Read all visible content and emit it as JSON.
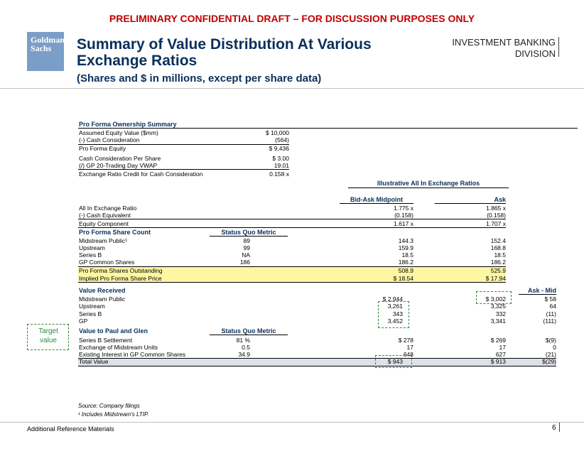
{
  "banner": "PRELIMINARY CONFIDENTIAL DRAFT – FOR DISCUSSION PURPOSES ONLY",
  "logo": {
    "line1": "Goldman",
    "line2": "Sachs"
  },
  "title": {
    "line1": "Summary of Value Distribution At Various",
    "line2": "Exchange Ratios",
    "subtitle": "(Shares and $ in millions, except per share data)"
  },
  "division": {
    "line1": "INVESTMENT BANKING",
    "line2": "DIVISION"
  },
  "ownership": {
    "header": "Pro Forma Ownership Summary",
    "rows": [
      {
        "label": "Assumed Equity Value ($mm)",
        "value": "$ 10,000"
      },
      {
        "label": "(-) Cash Consideration",
        "value": "(564)"
      },
      {
        "label": "Pro Forma Equity",
        "value": "$ 9,436"
      },
      {
        "label": "Cash Consideration Per Share",
        "value": "$ 3.00"
      },
      {
        "label": "(/) GP 20-Trading Day VWAP",
        "value": "19.01"
      },
      {
        "label": "Exchange Ratio Credit for Cash Consideration",
        "value": "0.158 x"
      }
    ]
  },
  "ratios": {
    "header": "Illustrative All In Exchange Ratios",
    "col_mid": "Bid-Ask Midpoint",
    "col_ask": "Ask",
    "rows": [
      {
        "label": "All In Exchange Ratio",
        "mid": "1.775 x",
        "ask": "1.865 x"
      },
      {
        "label": "(-) Cash Equivalent",
        "mid": "(0.158)",
        "ask": "(0.158)"
      },
      {
        "label": "Equity Component",
        "mid": "1.617 x",
        "ask": "1.707 x"
      }
    ]
  },
  "share_count": {
    "header": "Pro Forma Share Count",
    "sq_header": "Status Quo Metric",
    "rows": [
      {
        "label": "Midstream Public¹",
        "sq": "89",
        "mid": "144.3",
        "ask": "152.4"
      },
      {
        "label": "Upstream",
        "sq": "99",
        "mid": "159.9",
        "ask": "168.8"
      },
      {
        "label": "Series B",
        "sq": "NA",
        "mid": "18.5",
        "ask": "18.5"
      },
      {
        "label": "GP Common Shares",
        "sq": "186",
        "mid": "186.2",
        "ask": "186.2"
      }
    ],
    "outstanding": {
      "label": "Pro Forma Shares Outstanding",
      "mid": "508.9",
      "ask": "525.9"
    },
    "price": {
      "label": "Implied Pro Forma Share Price",
      "mid": "$ 18.54",
      "ask": "$ 17.94"
    }
  },
  "value_received": {
    "header": "Value Received",
    "diff_header": "Ask - Mid",
    "rows": [
      {
        "label": "Midstream Public",
        "mid": "$ 2,944",
        "ask": "$ 3,002",
        "diff": "$ 58"
      },
      {
        "label": "Upstream",
        "mid": "3,261",
        "ask": "3,325",
        "diff": "64"
      },
      {
        "label": "Series B",
        "mid": "343",
        "ask": "332",
        "diff": "(11)"
      },
      {
        "label": "GP",
        "mid": "3,452",
        "ask": "3,341",
        "diff": "(111)"
      }
    ]
  },
  "paul_glen": {
    "header": "Value to Paul and Glen",
    "sq_header": "Status Quo Metric",
    "rows": [
      {
        "label": "Series B Settlement",
        "sq": "81 %",
        "mid": "$ 278",
        "ask": "$ 269",
        "diff": "$(9)"
      },
      {
        "label": "Exchange of Midstream Units",
        "sq": "0.5",
        "mid": "17",
        "ask": "17",
        "diff": "0"
      },
      {
        "label": "Existing Interest in GP Common Shares",
        "sq": "34.9",
        "mid": "648",
        "ask": "627",
        "diff": "(21)"
      }
    ],
    "total": {
      "label": "Total Value",
      "mid": "$ 943",
      "ask": "$ 913",
      "diff": "$(29)"
    }
  },
  "annotation": {
    "target_line1": "Target",
    "target_line2": "value"
  },
  "sources": {
    "line1": "Source: Company filings",
    "line2": "¹ Includes Midstream's LTIP."
  },
  "footer": {
    "left": "Additional Reference Materials",
    "page": "6"
  },
  "colors": {
    "navy": "#0a2f5c",
    "red": "#c00000",
    "highlight": "#fdf6a3",
    "dash_green": "#2e8b3e"
  }
}
